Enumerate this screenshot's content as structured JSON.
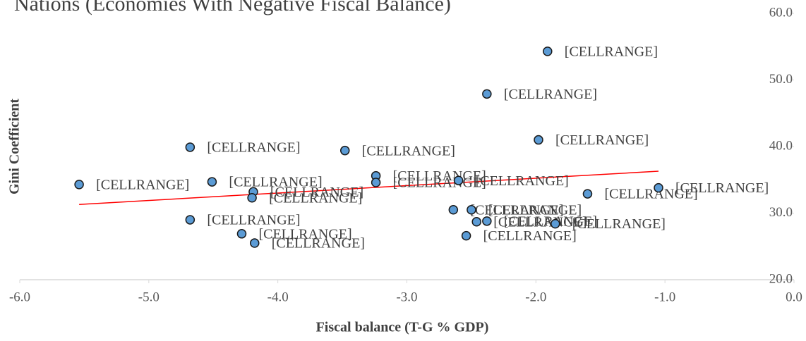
{
  "chart_data": {
    "type": "scatter",
    "title": "Nations (Economies With Negative Fiscal Balance)",
    "x_label": "Fiscal balance (T-G % GDP)",
    "y_label": "Gini Coefficient",
    "x": [
      -1.91,
      -2.38,
      -1.98,
      -4.68,
      -3.48,
      -5.54,
      -4.51,
      -4.19,
      -4.2,
      -3.24,
      -3.24,
      -2.6,
      -1.6,
      -1.05,
      -4.68,
      -2.64,
      -2.5,
      -2.46,
      -2.38,
      -1.85,
      -4.28,
      -4.18,
      -2.54
    ],
    "values": [
      54.3,
      47.9,
      41.0,
      39.9,
      39.4,
      34.3,
      34.7,
      33.2,
      32.3,
      35.6,
      34.6,
      34.9,
      32.9,
      33.8,
      29.0,
      30.5,
      30.5,
      28.7,
      28.8,
      28.4,
      26.9,
      25.5,
      26.6
    ],
    "point_labels": [
      "[CELLRANGE]",
      "[CELLRANGE]",
      "[CELLRANGE]",
      "[CELLRANGE]",
      "[CELLRANGE]",
      "[CELLRANGE]",
      "[CELLRANGE]",
      "[CELLRANGE]",
      "[CELLRANGE]",
      "[CELLRANGE]",
      "[CELLRANGE]",
      "[CELLRANGE]",
      "[CELLRANGE]",
      "[CELLRANGE]",
      "[CELLRANGE]",
      "[CELLRANGE]",
      "[CELLRANGE]",
      "[CELLRANGE]",
      "[CELLRANGE]",
      "[CELLRANGE]",
      "[CELLRANGE]",
      "[CELLRANGE]",
      "[CELLRANGE]"
    ],
    "color": "#5b9bd5",
    "trendline": {
      "x": [
        -5.54,
        -1.05
      ],
      "y": [
        31.3,
        36.3
      ],
      "color": "#ff0000"
    },
    "xlim": [
      -6.0,
      0.0
    ],
    "xticks": [
      {
        "value": -6,
        "label": "-6.0"
      },
      {
        "value": -5,
        "label": "-5.0"
      },
      {
        "value": -4,
        "label": "-4.0"
      },
      {
        "value": -3,
        "label": "-3.0"
      },
      {
        "value": -2,
        "label": "-2.0"
      },
      {
        "value": -1,
        "label": "-1.0"
      },
      {
        "value": 0,
        "label": "0.0"
      }
    ],
    "ylim": [
      20.0,
      60.0
    ],
    "yticks": [
      {
        "value": 20,
        "label": "20.0"
      },
      {
        "value": 30,
        "label": "30.0"
      },
      {
        "value": 40,
        "label": "40.0"
      },
      {
        "value": 50,
        "label": "50.0"
      },
      {
        "value": 60,
        "label": "60.0"
      }
    ]
  }
}
